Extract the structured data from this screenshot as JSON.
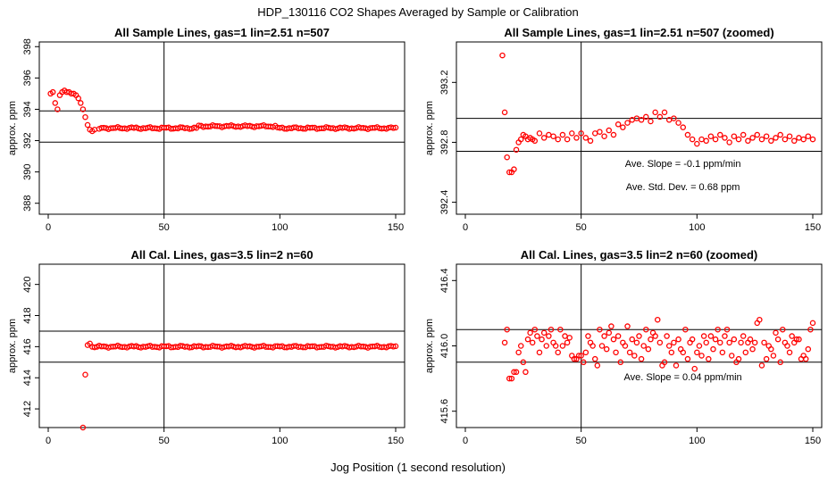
{
  "figure": {
    "title": "HDP_130116  CO2 Shapes Averaged by Sample or Calibration",
    "xlabel": "Jog Position (1 second resolution)"
  },
  "colors": {
    "points": "#ff0000",
    "axes": "#000000",
    "background": "#ffffff"
  },
  "chart_data": [
    {
      "id": "p1",
      "type": "scatter",
      "title": "All Sample Lines, gas=1 lin=2.51 n=507",
      "ylabel": "approx. ppm",
      "xlim": [
        0,
        150
      ],
      "ylim": [
        387.3,
        398.3
      ],
      "xticks": [
        0,
        50,
        100,
        150
      ],
      "yticks": [
        388,
        390,
        392,
        394,
        396,
        398
      ],
      "hlines": [
        393.9,
        391.9
      ],
      "vline": 50,
      "annotations": [],
      "points": [
        [
          1,
          395
        ],
        [
          2,
          395.1
        ],
        [
          3,
          394.4
        ],
        [
          4,
          394
        ],
        [
          5,
          394.9
        ],
        [
          6,
          395.1
        ],
        [
          7,
          395.2
        ],
        [
          8,
          395.1
        ],
        [
          9,
          395.1
        ],
        [
          10,
          395
        ],
        [
          11,
          395
        ],
        [
          12,
          394.9
        ],
        [
          13,
          394.7
        ],
        [
          14,
          394.4
        ],
        [
          15,
          394
        ],
        [
          16,
          393.5
        ],
        [
          17,
          393
        ],
        [
          18,
          392.7
        ],
        [
          19,
          392.6
        ],
        [
          20,
          392.7
        ],
        [
          22,
          392.75
        ]
      ],
      "series": {
        "start": 23,
        "end": 150,
        "base": 392.8,
        "bump_start": 65,
        "bump_end": 98,
        "bump": 0.12
      }
    },
    {
      "id": "p2",
      "type": "scatter",
      "title": "All Sample Lines, gas=1 lin=2.51 n=507 (zoomed)",
      "ylabel": "approx. ppm",
      "xlim": [
        0,
        150
      ],
      "ylim": [
        392.32,
        393.47
      ],
      "xticks": [
        0,
        50,
        100,
        150
      ],
      "yticks": [
        392.4,
        392.8,
        393.2
      ],
      "hlines": [
        392.96,
        392.74
      ],
      "vline": 50,
      "annotations": [
        "Ave. Slope =  -0.1  ppm/min",
        "Ave. Std. Dev. =  0.68  ppm"
      ],
      "points": [
        [
          16,
          393.38
        ],
        [
          17,
          393.0
        ],
        [
          18,
          392.7
        ],
        [
          19,
          392.6
        ],
        [
          20,
          392.6
        ],
        [
          21,
          392.62
        ],
        [
          22,
          392.75
        ],
        [
          23,
          392.8
        ],
        [
          24,
          392.82
        ],
        [
          25,
          392.85
        ],
        [
          26,
          392.84
        ],
        [
          27,
          392.82
        ],
        [
          28,
          392.83
        ],
        [
          29,
          392.82
        ],
        [
          30,
          392.81
        ],
        [
          32,
          392.86
        ],
        [
          34,
          392.83
        ],
        [
          36,
          392.85
        ],
        [
          38,
          392.84
        ],
        [
          40,
          392.82
        ],
        [
          42,
          392.85
        ],
        [
          44,
          392.82
        ],
        [
          46,
          392.86
        ],
        [
          48,
          392.83
        ],
        [
          50,
          392.86
        ],
        [
          52,
          392.83
        ],
        [
          54,
          392.81
        ],
        [
          56,
          392.86
        ],
        [
          58,
          392.87
        ],
        [
          60,
          392.84
        ],
        [
          62,
          392.88
        ],
        [
          64,
          392.85
        ],
        [
          66,
          392.92
        ],
        [
          68,
          392.9
        ],
        [
          70,
          392.93
        ],
        [
          72,
          392.95
        ],
        [
          74,
          392.96
        ],
        [
          76,
          392.95
        ],
        [
          78,
          392.97
        ],
        [
          80,
          392.94
        ],
        [
          82,
          393.0
        ],
        [
          84,
          392.97
        ],
        [
          86,
          393.0
        ],
        [
          88,
          392.95
        ],
        [
          90,
          392.96
        ],
        [
          92,
          392.93
        ],
        [
          94,
          392.9
        ],
        [
          96,
          392.85
        ],
        [
          98,
          392.82
        ],
        [
          100,
          392.79
        ],
        [
          102,
          392.82
        ],
        [
          104,
          392.81
        ],
        [
          106,
          392.84
        ],
        [
          108,
          392.82
        ],
        [
          110,
          392.85
        ],
        [
          112,
          392.83
        ],
        [
          114,
          392.8
        ],
        [
          116,
          392.84
        ],
        [
          118,
          392.82
        ],
        [
          120,
          392.85
        ],
        [
          122,
          392.81
        ],
        [
          124,
          392.83
        ],
        [
          126,
          392.85
        ],
        [
          128,
          392.82
        ],
        [
          130,
          392.84
        ],
        [
          132,
          392.81
        ],
        [
          134,
          392.83
        ],
        [
          136,
          392.85
        ],
        [
          138,
          392.82
        ],
        [
          140,
          392.84
        ],
        [
          142,
          392.81
        ],
        [
          144,
          392.83
        ],
        [
          146,
          392.82
        ],
        [
          148,
          392.84
        ],
        [
          150,
          392.82
        ]
      ]
    },
    {
      "id": "p3",
      "type": "scatter",
      "title": "All Cal. Lines, gas=3.5 lin=2 n=60",
      "ylabel": "approx. ppm",
      "xlim": [
        0,
        150
      ],
      "ylim": [
        410.8,
        421.3
      ],
      "xticks": [
        0,
        50,
        100,
        150
      ],
      "yticks": [
        412,
        414,
        416,
        418,
        420
      ],
      "hlines": [
        417.0,
        415.0
      ],
      "vline": 50,
      "annotations": [],
      "points": [
        [
          15,
          410.8
        ],
        [
          16,
          414.2
        ],
        [
          17,
          416.1
        ],
        [
          18,
          416.2
        ]
      ],
      "series": {
        "start": 19,
        "end": 150,
        "base": 416.0,
        "bump_start": 0,
        "bump_end": 0,
        "bump": 0
      }
    },
    {
      "id": "p4",
      "type": "scatter",
      "title": "All Cal. Lines, gas=3.5 lin=2 n=60 (zoomed)",
      "ylabel": "approx. ppm",
      "xlim": [
        0,
        150
      ],
      "ylim": [
        415.5,
        416.5
      ],
      "xticks": [
        0,
        50,
        100,
        150
      ],
      "yticks": [
        415.6,
        416.0,
        416.4
      ],
      "hlines": [
        416.1,
        415.9
      ],
      "vline": 50,
      "annotations": [
        "Ave. Slope =  0.04  ppm/min"
      ],
      "points": [
        [
          17,
          416.02
        ],
        [
          18,
          416.1
        ],
        [
          19,
          415.8
        ],
        [
          20,
          415.8
        ],
        [
          21,
          415.84
        ],
        [
          22,
          415.84
        ],
        [
          23,
          415.96
        ],
        [
          24,
          416.0
        ],
        [
          25,
          415.9
        ],
        [
          26,
          415.84
        ],
        [
          27,
          416.04
        ],
        [
          28,
          416.08
        ],
        [
          29,
          416.02
        ],
        [
          30,
          416.1
        ],
        [
          31,
          416.06
        ],
        [
          32,
          415.96
        ],
        [
          33,
          416.04
        ],
        [
          34,
          416.08
        ],
        [
          35,
          416.0
        ],
        [
          36,
          416.06
        ],
        [
          37,
          416.1
        ],
        [
          38,
          416.02
        ],
        [
          39,
          416.0
        ],
        [
          40,
          415.96
        ],
        [
          41,
          416.1
        ],
        [
          42,
          416.0
        ],
        [
          43,
          416.06
        ],
        [
          44,
          416.02
        ],
        [
          45,
          416.05
        ],
        [
          46,
          415.94
        ],
        [
          47,
          415.92
        ],
        [
          48,
          415.92
        ],
        [
          49,
          415.94
        ],
        [
          50,
          415.94
        ],
        [
          51,
          415.9
        ],
        [
          52,
          415.96
        ],
        [
          53,
          416.06
        ],
        [
          54,
          416.02
        ],
        [
          55,
          416.0
        ],
        [
          56,
          415.92
        ],
        [
          57,
          415.88
        ],
        [
          58,
          416.1
        ],
        [
          59,
          416.0
        ],
        [
          60,
          416.06
        ],
        [
          61,
          415.98
        ],
        [
          62,
          416.08
        ],
        [
          63,
          416.12
        ],
        [
          64,
          416.04
        ],
        [
          65,
          415.96
        ],
        [
          66,
          416.06
        ],
        [
          67,
          415.9
        ],
        [
          68,
          416.02
        ],
        [
          69,
          416.0
        ],
        [
          70,
          416.12
        ],
        [
          71,
          415.96
        ],
        [
          72,
          416.04
        ],
        [
          73,
          415.94
        ],
        [
          74,
          416.02
        ],
        [
          75,
          416.06
        ],
        [
          76,
          415.92
        ],
        [
          77,
          416.0
        ],
        [
          78,
          416.1
        ],
        [
          79,
          415.98
        ],
        [
          80,
          416.04
        ],
        [
          81,
          416.08
        ],
        [
          82,
          416.06
        ],
        [
          83,
          416.16
        ],
        [
          84,
          416.02
        ],
        [
          85,
          415.88
        ],
        [
          86,
          415.9
        ],
        [
          87,
          416.06
        ],
        [
          88,
          416.0
        ],
        [
          89,
          415.96
        ],
        [
          90,
          416.02
        ],
        [
          91,
          415.88
        ],
        [
          92,
          416.04
        ],
        [
          93,
          415.98
        ],
        [
          94,
          415.96
        ],
        [
          95,
          416.1
        ],
        [
          96,
          415.92
        ],
        [
          97,
          416.02
        ],
        [
          98,
          416.04
        ],
        [
          99,
          415.86
        ],
        [
          100,
          415.96
        ],
        [
          101,
          416.0
        ],
        [
          102,
          415.94
        ],
        [
          103,
          416.06
        ],
        [
          104,
          416.02
        ],
        [
          105,
          415.92
        ],
        [
          106,
          416.06
        ],
        [
          107,
          415.98
        ],
        [
          108,
          416.04
        ],
        [
          109,
          416.1
        ],
        [
          110,
          416.02
        ],
        [
          111,
          415.96
        ],
        [
          112,
          416.06
        ],
        [
          113,
          416.1
        ],
        [
          114,
          416.02
        ],
        [
          115,
          415.94
        ],
        [
          116,
          416.04
        ],
        [
          117,
          415.9
        ],
        [
          118,
          415.92
        ],
        [
          119,
          416.02
        ],
        [
          120,
          416.06
        ],
        [
          121,
          415.96
        ],
        [
          122,
          416.02
        ],
        [
          123,
          416.04
        ],
        [
          124,
          415.98
        ],
        [
          125,
          416.02
        ],
        [
          126,
          416.14
        ],
        [
          127,
          416.16
        ],
        [
          128,
          415.88
        ],
        [
          129,
          416.02
        ],
        [
          130,
          415.92
        ],
        [
          131,
          416.0
        ],
        [
          132,
          415.98
        ],
        [
          133,
          415.94
        ],
        [
          134,
          416.08
        ],
        [
          135,
          416.04
        ],
        [
          136,
          415.9
        ],
        [
          137,
          416.1
        ],
        [
          138,
          416.02
        ],
        [
          139,
          416.0
        ],
        [
          140,
          415.96
        ],
        [
          141,
          416.06
        ],
        [
          142,
          416.02
        ],
        [
          143,
          416.04
        ],
        [
          144,
          416.04
        ],
        [
          145,
          415.92
        ],
        [
          146,
          415.94
        ],
        [
          147,
          415.92
        ],
        [
          148,
          415.98
        ],
        [
          149,
          416.1
        ],
        [
          150,
          416.14
        ]
      ]
    }
  ]
}
